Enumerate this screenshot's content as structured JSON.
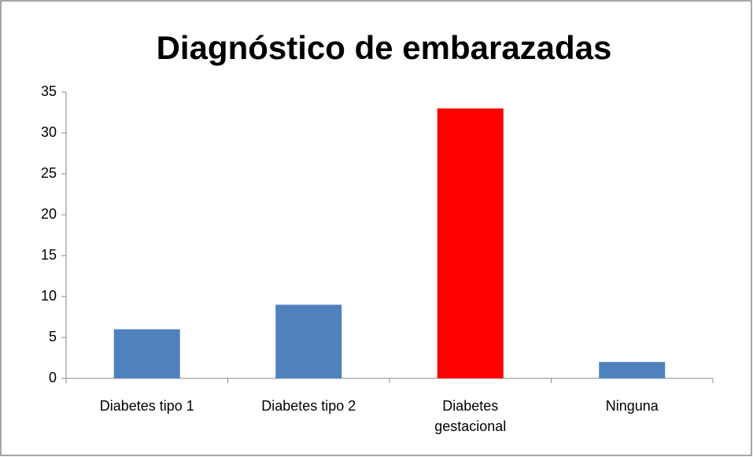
{
  "chart_data": {
    "type": "bar",
    "title": "Diagnóstico de embarazadas",
    "categories": [
      "Diabetes tipo 1",
      "Diabetes tipo 2",
      "Diabetes gestacional",
      "Ninguna"
    ],
    "values": [
      6,
      9,
      33,
      2
    ],
    "colors": [
      "#4f81bd",
      "#4f81bd",
      "#ff0000",
      "#4f81bd"
    ],
    "ylim": [
      0,
      35
    ],
    "yticks": [
      0,
      5,
      10,
      15,
      20,
      25,
      30,
      35
    ],
    "grid": false
  }
}
